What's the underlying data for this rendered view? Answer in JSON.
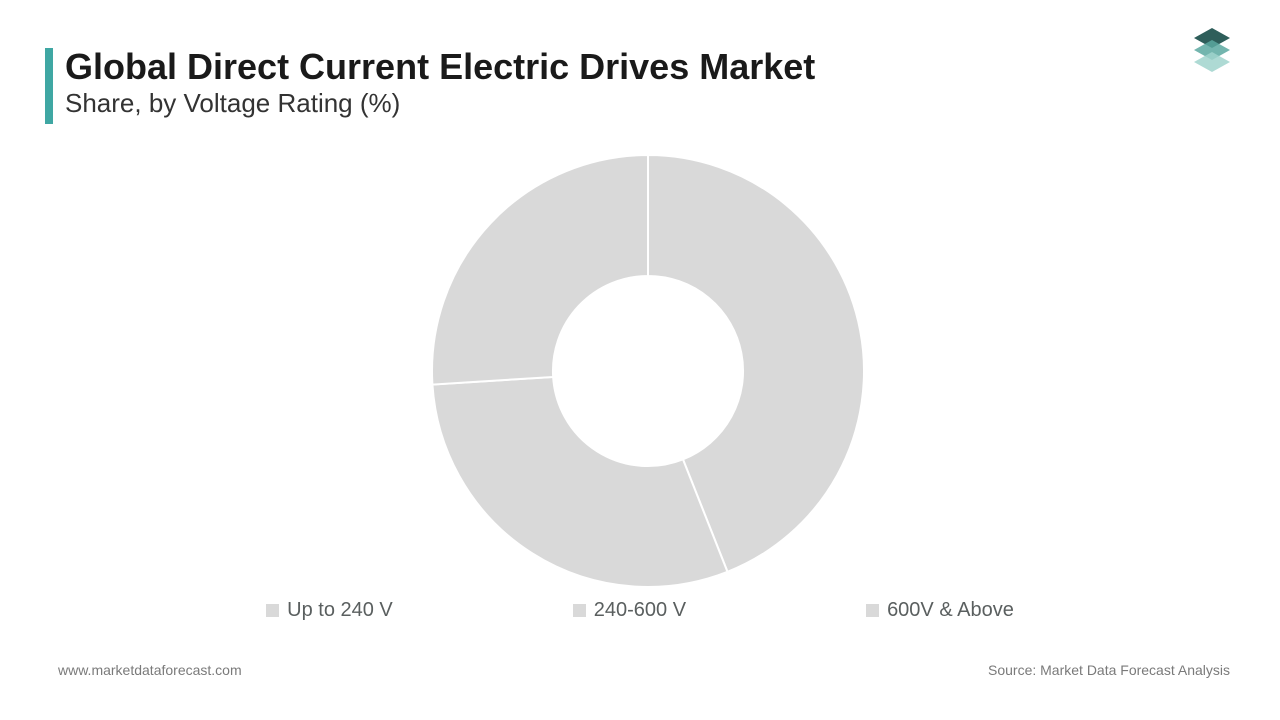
{
  "header": {
    "title": "Global Direct Current Electric Drives Market",
    "subtitle": "Share, by Voltage Rating (%)",
    "accent_color": "#3fa7a3"
  },
  "logo": {
    "primary_color": "#2e5e5a",
    "secondary_color": "#a0d4cd",
    "tertiary_color": "#5ba8a0"
  },
  "chart": {
    "type": "donut",
    "inner_radius_ratio": 0.44,
    "slice_color": "#d9d9d9",
    "divider_color": "#ffffff",
    "divider_width": 2,
    "background_color": "#ffffff",
    "series": [
      {
        "label": "Up to 240 V",
        "value": 44
      },
      {
        "label": "240-600 V",
        "value": 30
      },
      {
        "label": "600V & Above",
        "value": 26
      }
    ]
  },
  "legend": {
    "items": [
      {
        "label": "Up to 240 V"
      },
      {
        "label": "240-600 V"
      },
      {
        "label": "600V & Above"
      }
    ],
    "swatch_color": "#d9d9d9",
    "text_color": "#5a5f5f",
    "font_size": 20,
    "bullet": "■"
  },
  "footer": {
    "left": "www.marketdataforecast.com",
    "right": "Source: Market Data Forecast Analysis",
    "color": "#7a7a7a",
    "font_size": 14
  }
}
